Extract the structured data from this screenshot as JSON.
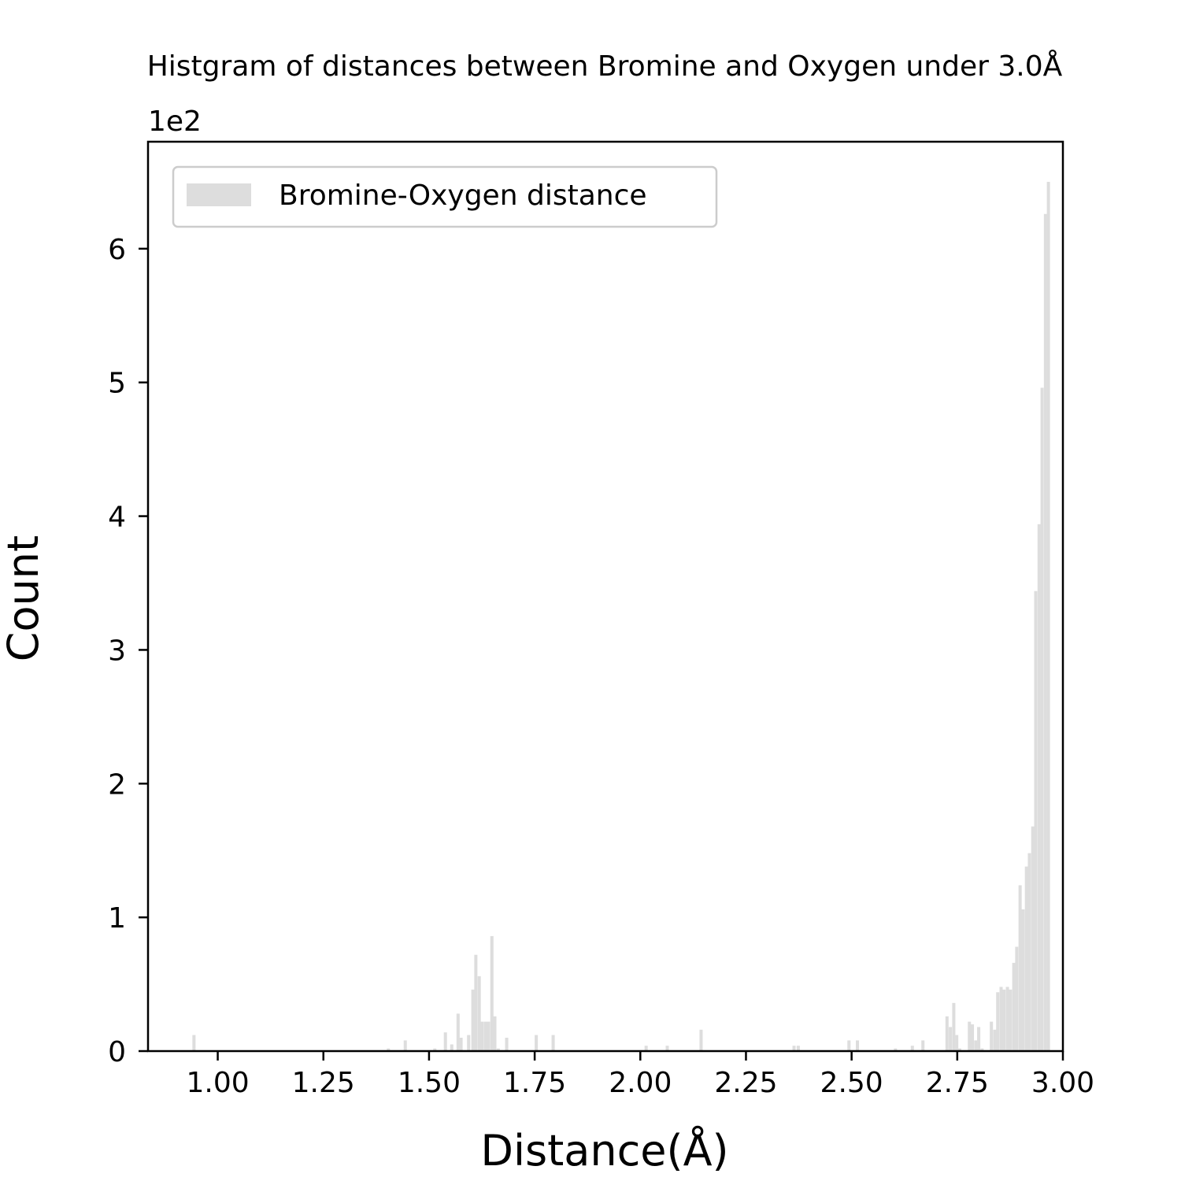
{
  "chart_data": {
    "type": "bar",
    "title": "Histgram of distances between Bromine and Oxygen under 3.0Å",
    "xlabel": "Distance(Å)",
    "ylabel": "Count",
    "y_offset_text": "1e2",
    "xlim": [
      0.835,
      3.0
    ],
    "ylim": [
      0,
      6.8
    ],
    "x_ticks": [
      1.0,
      1.25,
      1.5,
      1.75,
      2.0,
      2.25,
      2.5,
      2.75,
      3.0
    ],
    "x_tick_labels": [
      "1.00",
      "1.25",
      "1.50",
      "1.75",
      "2.00",
      "2.25",
      "2.50",
      "2.75",
      "3.00"
    ],
    "y_ticks": [
      0,
      1,
      2,
      3,
      4,
      5,
      6
    ],
    "y_tick_labels": [
      "0",
      "1",
      "2",
      "3",
      "4",
      "5",
      "6"
    ],
    "bin_width": 0.0075,
    "legend": {
      "placement": "upper-left",
      "label": "Bromine-Oxygen distance"
    },
    "bar_color": "#dddddd",
    "grid": false,
    "series": [
      {
        "name": "Bromine-Oxygen distance",
        "x": [
          0.94,
          1.4,
          1.44,
          1.51,
          1.535,
          1.55,
          1.565,
          1.572,
          1.59,
          1.6,
          1.607,
          1.615,
          1.622,
          1.63,
          1.637,
          1.645,
          1.652,
          1.66,
          1.68,
          1.75,
          1.79,
          2.01,
          2.06,
          2.14,
          2.36,
          2.37,
          2.49,
          2.51,
          2.6,
          2.64,
          2.665,
          2.722,
          2.73,
          2.738,
          2.745,
          2.752,
          2.775,
          2.782,
          2.79,
          2.797,
          2.805,
          2.827,
          2.835,
          2.842,
          2.85,
          2.857,
          2.865,
          2.872,
          2.88,
          2.887,
          2.895,
          2.902,
          2.91,
          2.917,
          2.925,
          2.932,
          2.94,
          2.947,
          2.955,
          2.962,
          2.97,
          2.977,
          2.985,
          2.992
        ],
        "values": [
          0.12,
          0.02,
          0.08,
          0.02,
          0.14,
          0.05,
          0.28,
          0.1,
          0.12,
          0.46,
          0.72,
          0.56,
          0.22,
          0.22,
          0.22,
          0.86,
          0.26,
          0.02,
          0.1,
          0.12,
          0.12,
          0.04,
          0.04,
          0.16,
          0.04,
          0.04,
          0.08,
          0.08,
          0.02,
          0.04,
          0.08,
          0.26,
          0.18,
          0.36,
          0.12,
          0.02,
          0.22,
          0.2,
          0.08,
          0.18,
          0.02,
          0.22,
          0.16,
          0.44,
          0.48,
          0.46,
          0.48,
          0.46,
          0.66,
          0.78,
          1.24,
          1.06,
          1.38,
          1.48,
          1.68,
          3.44,
          3.94,
          4.96,
          6.26,
          6.5,
          0.0,
          0.0,
          0.0,
          0.0
        ]
      }
    ]
  }
}
